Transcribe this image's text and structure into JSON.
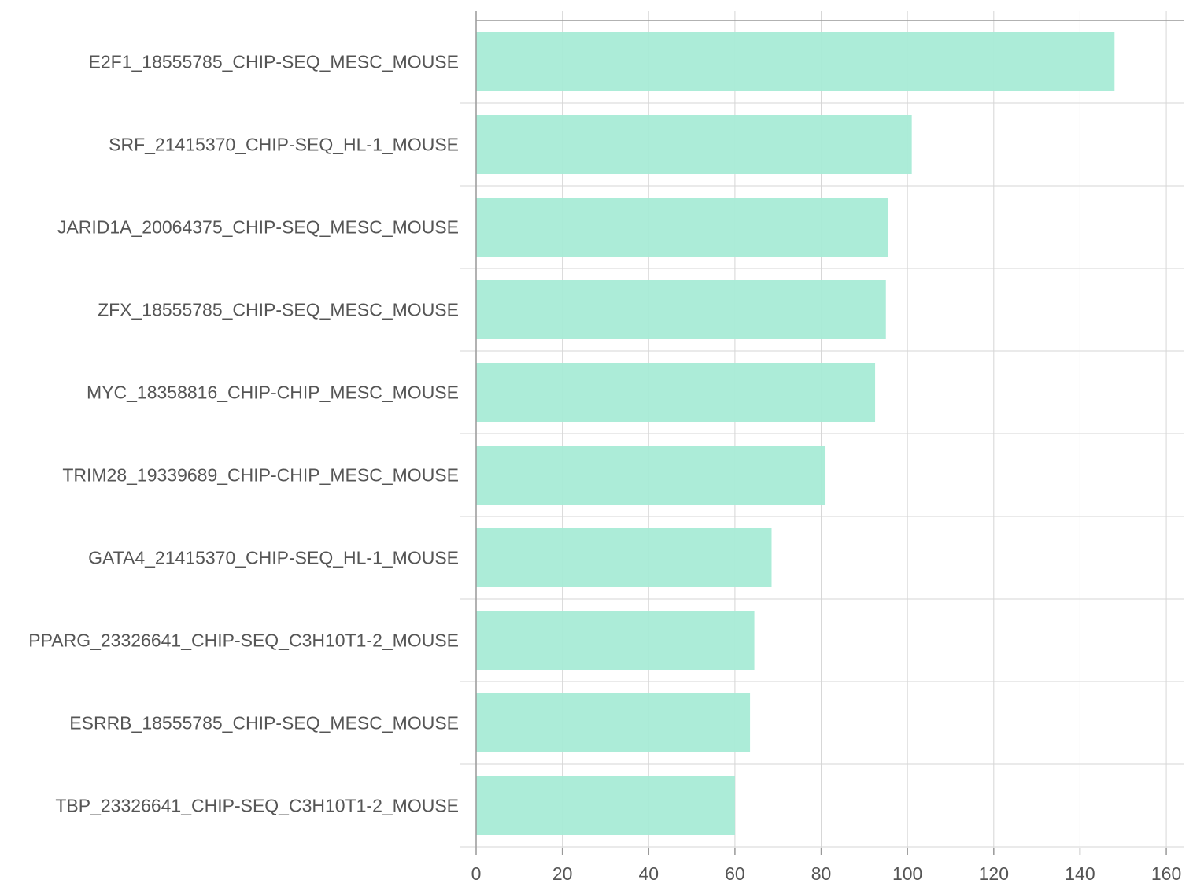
{
  "chart_data": {
    "type": "bar",
    "orientation": "horizontal",
    "categories": [
      "E2F1_18555785_CHIP-SEQ_MESC_MOUSE",
      "SRF_21415370_CHIP-SEQ_HL-1_MOUSE",
      "JARID1A_20064375_CHIP-SEQ_MESC_MOUSE",
      "ZFX_18555785_CHIP-SEQ_MESC_MOUSE",
      "MYC_18358816_CHIP-CHIP_MESC_MOUSE",
      "TRIM28_19339689_CHIP-CHIP_MESC_MOUSE",
      "GATA4_21415370_CHIP-SEQ_HL-1_MOUSE",
      "PPARG_23326641_CHIP-SEQ_C3H10T1-2_MOUSE",
      "ESRRB_18555785_CHIP-SEQ_MESC_MOUSE",
      "TBP_23326641_CHIP-SEQ_C3H10T1-2_MOUSE"
    ],
    "values": [
      148,
      101,
      95.5,
      95,
      92.5,
      81,
      68.5,
      64.5,
      63.5,
      60
    ],
    "title": "",
    "xlabel": "",
    "ylabel": "",
    "xlim": [
      0,
      164
    ],
    "xticks": [
      0,
      20,
      40,
      60,
      80,
      100,
      120,
      140,
      160
    ],
    "grid": true,
    "bar_color": "#a8ebd6"
  }
}
